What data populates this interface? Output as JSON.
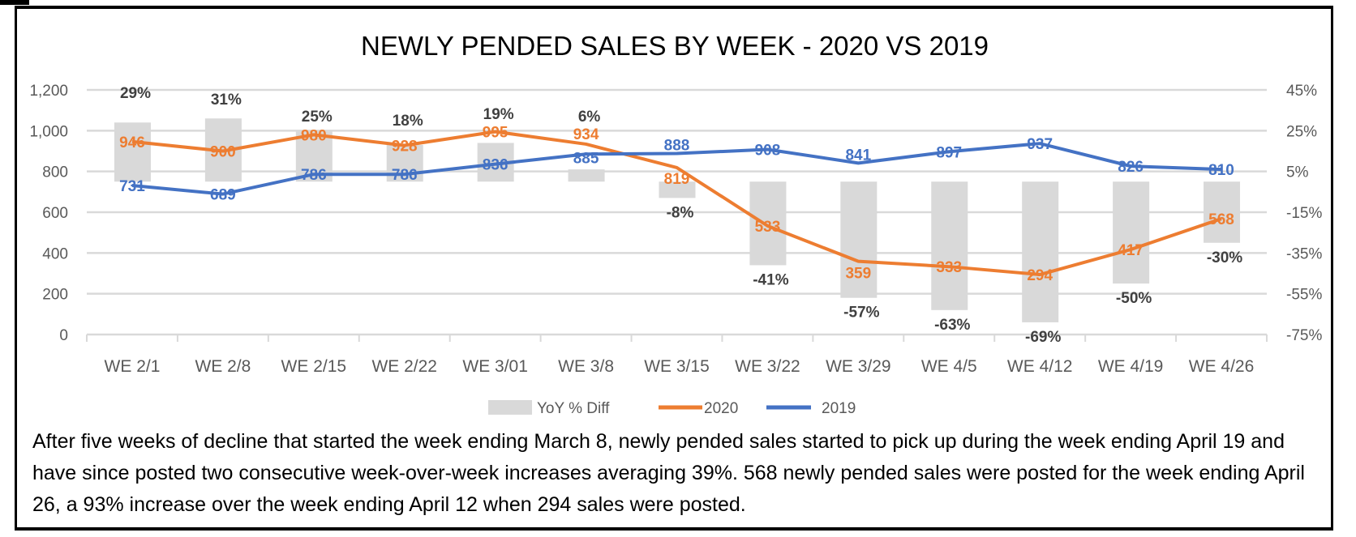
{
  "chart_data": {
    "type": "bar+line",
    "title": "NEWLY PENDED SALES BY WEEK - 2020 VS 2019",
    "categories": [
      "WE 2/1",
      "WE 2/8",
      "WE 2/15",
      "WE 2/22",
      "WE 3/01",
      "WE 3/8",
      "WE 3/15",
      "WE 3/22",
      "WE 3/29",
      "WE 4/5",
      "WE 4/12",
      "WE 4/19",
      "WE 4/26"
    ],
    "series": [
      {
        "name": "YoY % Diff",
        "type": "bar",
        "axis": "right",
        "color": "#D9D9D9",
        "values": [
          29,
          31,
          25,
          18,
          19,
          6,
          -8,
          -41,
          -57,
          -63,
          -69,
          -50,
          -30
        ],
        "labels": [
          "29%",
          "31%",
          "25%",
          "18%",
          "19%",
          "6%",
          "-8%",
          "-41%",
          "-57%",
          "-63%",
          "-69%",
          "-50%",
          "-30%"
        ]
      },
      {
        "name": "2020",
        "type": "line",
        "axis": "left",
        "color": "#ED7D31",
        "values": [
          946,
          900,
          980,
          928,
          995,
          934,
          819,
          533,
          359,
          333,
          294,
          417,
          568
        ]
      },
      {
        "name": "2019",
        "type": "line",
        "axis": "left",
        "color": "#4472C4",
        "values": [
          731,
          689,
          786,
          786,
          836,
          885,
          888,
          908,
          841,
          897,
          937,
          826,
          810
        ]
      }
    ],
    "y_left": {
      "range": [
        0,
        1200
      ],
      "ticks": [
        "0",
        "200",
        "400",
        "600",
        "800",
        "1,000",
        "1,200"
      ]
    },
    "y_right": {
      "range": [
        -75,
        45
      ],
      "unit": "%",
      "ticks": [
        "-75%",
        "-55%",
        "-35%",
        "-15%",
        "5%",
        "25%",
        "45%"
      ]
    },
    "grid": true,
    "legend": "bottom"
  },
  "caption": "After five weeks of decline that started the week ending March 8, newly pended sales started to pick up during the week ending April 19 and have since posted two consecutive week-over-week increases averaging 39%. 568 newly pended sales were posted for the week ending April 26, a 93% increase over the week ending April 12 when 294 sales were posted."
}
